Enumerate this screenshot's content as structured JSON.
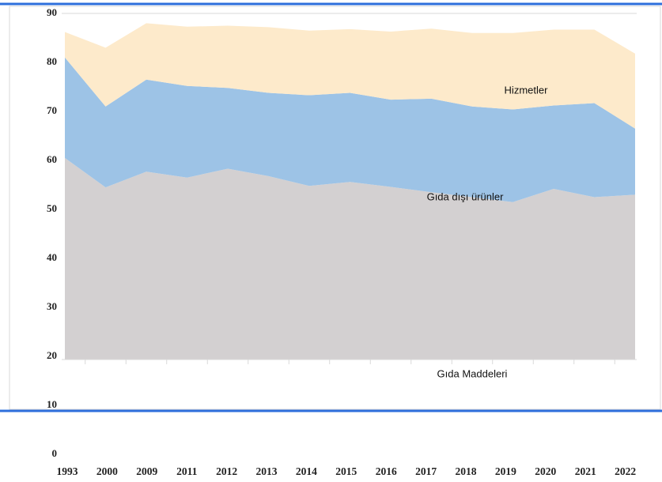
{
  "chart_data": {
    "type": "stacked_area",
    "categories": [
      "1993",
      "2000",
      "2009",
      "2011",
      "2012",
      "2013",
      "2014",
      "2015",
      "2016",
      "2017",
      "2018",
      "2019",
      "2020",
      "2021",
      "2022"
    ],
    "series": [
      {
        "name": "Gıda Maddeleri",
        "color": "#d3d0d1",
        "values": [
          60.5,
          54.5,
          57.7,
          56.5,
          58.3,
          56.8,
          54.8,
          55.6,
          54.6,
          53.5,
          52.5,
          51.5,
          54.2,
          52.5,
          53
        ]
      },
      {
        "name": "Gıda dışı ürünler",
        "color": "#9dc3e6",
        "values": [
          20.5,
          16.5,
          18.8,
          18.7,
          16.5,
          17,
          18.5,
          18.2,
          17.8,
          19.1,
          18.5,
          18.9,
          17,
          19.2,
          13.5
        ]
      },
      {
        "name": "Hizmetler",
        "color": "#fdeacb",
        "values": [
          5.2,
          12,
          11.5,
          12.1,
          12.7,
          13.4,
          13.2,
          13,
          13.9,
          14.3,
          15,
          15.6,
          15.5,
          15,
          15.3
        ]
      }
    ],
    "annotations": [
      "Hizmetler",
      "Gıda dışı ürünler",
      "Gıda Maddeleri"
    ],
    "ylim": [
      0,
      90
    ],
    "yticks": [
      0,
      10,
      20,
      30,
      40,
      50,
      60,
      70,
      80,
      90
    ]
  }
}
